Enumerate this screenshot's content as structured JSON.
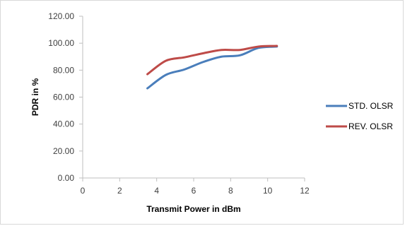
{
  "chart_data": {
    "type": "line",
    "title": "",
    "xlabel": "Transmit Power in dBm",
    "ylabel": "PDR in %",
    "xlim": [
      0,
      12
    ],
    "ylim": [
      0,
      120
    ],
    "x_ticks": [
      "0",
      "2",
      "4",
      "6",
      "8",
      "10",
      "12"
    ],
    "y_ticks": [
      "0.00",
      "20.00",
      "40.00",
      "60.00",
      "80.00",
      "100.00",
      "120.00"
    ],
    "grid": false,
    "legend_position": "right",
    "series": [
      {
        "name": "STD. OLSR",
        "color": "#4a7ebb",
        "x": [
          3.5,
          4.5,
          5.5,
          6.5,
          7.5,
          8.5,
          9.5,
          10.5
        ],
        "values": [
          66.5,
          76.5,
          80.5,
          86.0,
          90.0,
          91.0,
          96.5,
          97.5
        ]
      },
      {
        "name": "REV. OLSR",
        "color": "#be4b48",
        "x": [
          3.5,
          4.5,
          5.5,
          6.5,
          7.5,
          8.5,
          9.5,
          10.5
        ],
        "values": [
          77.0,
          87.0,
          89.5,
          92.5,
          95.0,
          95.0,
          97.5,
          98.0
        ]
      }
    ]
  }
}
